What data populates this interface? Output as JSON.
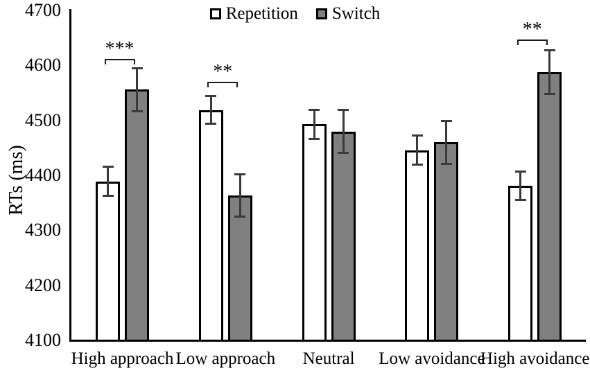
{
  "figure": {
    "background_color": "#ffffff",
    "bar_border_color": "#000000",
    "error_bar_color": "#3a3a3a"
  },
  "chart_data": {
    "type": "bar",
    "title": "",
    "xlabel": "",
    "ylabel": "RTs (ms)",
    "ylim": [
      4100,
      4700
    ],
    "yticks": [
      4700,
      4600,
      4500,
      4400,
      4300,
      4200,
      4100
    ],
    "grid": false,
    "legend_position": "top-center",
    "categories": [
      "High approach",
      "Low approach",
      "Neutral",
      "Low avoidance",
      "High avoidance"
    ],
    "series": [
      {
        "name": "Repetition",
        "fill": "#ffffff",
        "values": [
          4389,
          4519,
          4493,
          4446,
          4381
        ],
        "errors": [
          27,
          26,
          27,
          27,
          26
        ]
      },
      {
        "name": "Switch",
        "fill": "#808080",
        "values": [
          4556,
          4364,
          4480,
          4460,
          4588
        ],
        "errors": [
          40,
          39,
          40,
          40,
          40
        ]
      }
    ],
    "significance": [
      {
        "category_index": 0,
        "label": "***",
        "bracket_value": 4612
      },
      {
        "category_index": 1,
        "label": "**",
        "bracket_value": 4570
      },
      {
        "category_index": 4,
        "label": "**",
        "bracket_value": 4647
      }
    ]
  }
}
